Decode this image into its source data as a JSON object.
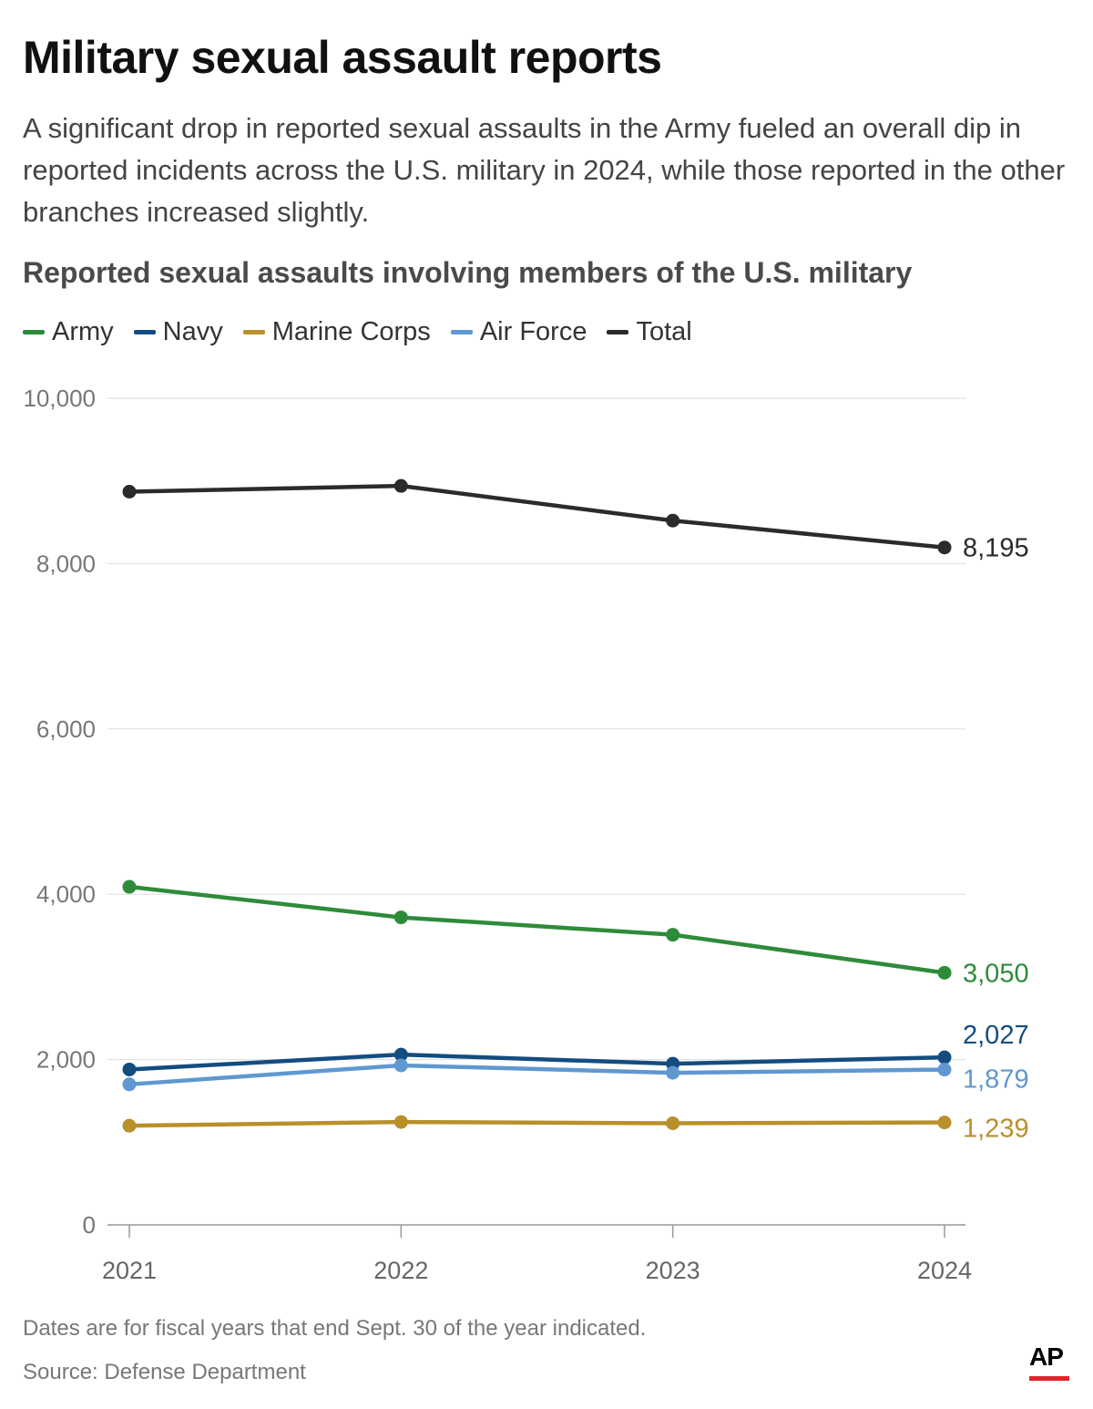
{
  "header": {
    "title": "Military sexual assault reports",
    "subtitle": "A significant drop in reported sexual assaults in the Army fueled an overall dip in reported incidents across the U.S. military in 2024, while those reported in the other branches increased slightly."
  },
  "chart_data": {
    "type": "line",
    "title": "Reported sexual assaults involving members of the U.S. military",
    "xlabel": "",
    "ylabel": "",
    "x": [
      "2021",
      "2022",
      "2023",
      "2024"
    ],
    "ylim": [
      0,
      10000
    ],
    "yticks": [
      0,
      2000,
      4000,
      6000,
      8000,
      10000
    ],
    "ytick_labels": [
      "0",
      "2,000",
      "4,000",
      "6,000",
      "8,000",
      "10,000"
    ],
    "grid": true,
    "legend_position": "top-left",
    "series": [
      {
        "name": "Army",
        "color": "#2e8b3a",
        "values": [
          4090,
          3720,
          3510,
          3050
        ],
        "end_label": "3,050"
      },
      {
        "name": "Navy",
        "color": "#134d80",
        "values": [
          1880,
          2060,
          1950,
          2027
        ],
        "end_label": "2,027"
      },
      {
        "name": "Marine Corps",
        "color": "#b8902a",
        "values": [
          1200,
          1245,
          1230,
          1239
        ],
        "end_label": "1,239"
      },
      {
        "name": "Air Force",
        "color": "#5f98d0",
        "values": [
          1700,
          1930,
          1840,
          1879
        ],
        "end_label": "1,879"
      },
      {
        "name": "Total",
        "color": "#2b2b2b",
        "values": [
          8870,
          8940,
          8520,
          8195
        ],
        "end_label": "8,195"
      }
    ]
  },
  "footer": {
    "note": "Dates are for fiscal years that end Sept. 30 of the year indicated.",
    "source": "Source: Defense Department",
    "logo_text": "AP"
  }
}
